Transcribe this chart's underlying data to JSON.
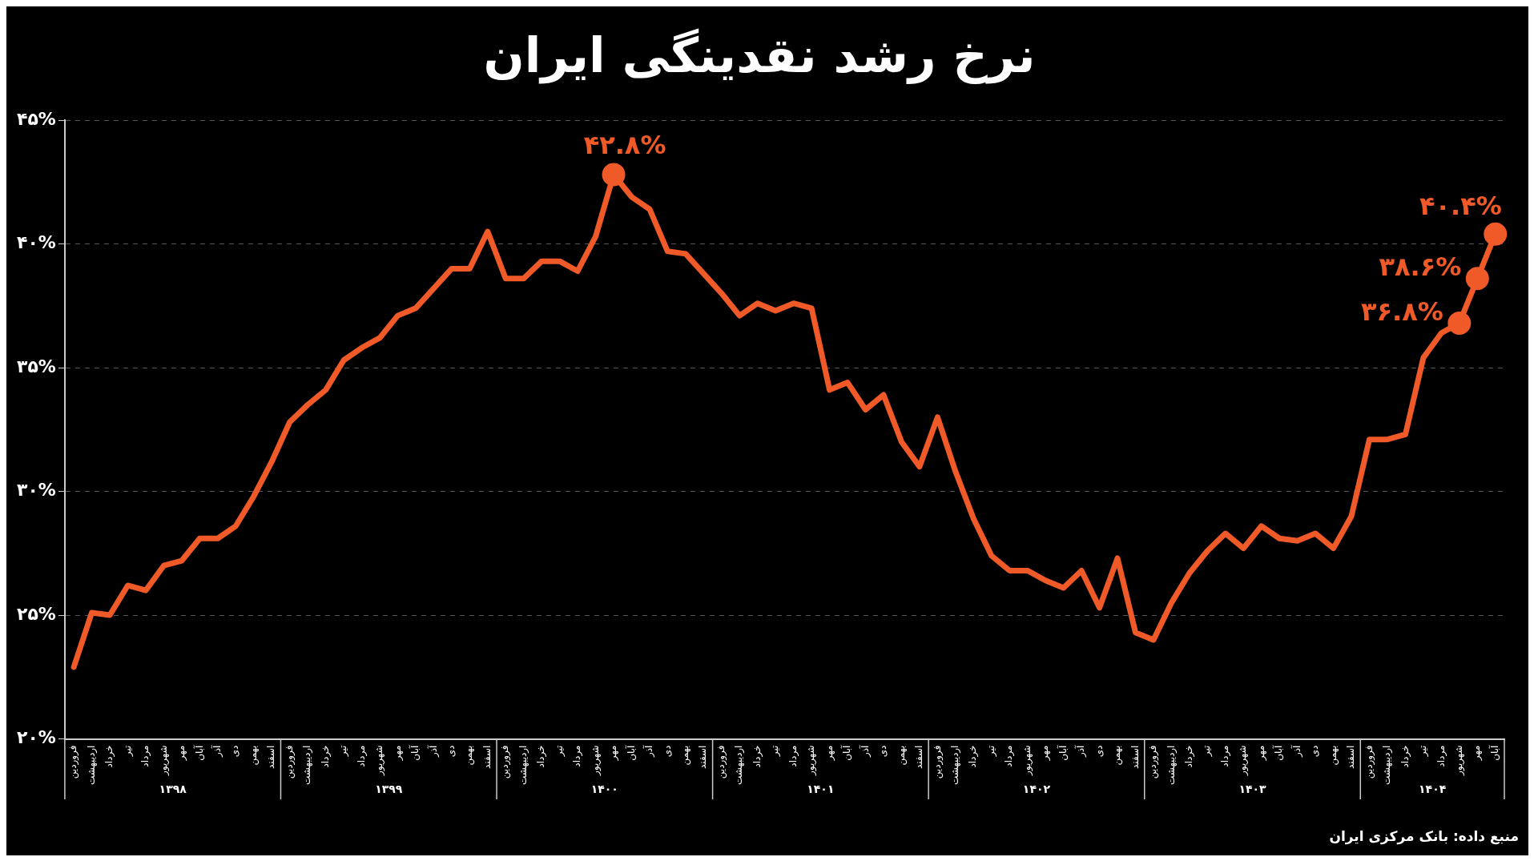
{
  "chart_data": {
    "type": "line",
    "title": "نرخ رشد نقدینگی ایران",
    "categories": [
      "فروردین",
      "اردیبهشت",
      "خرداد",
      "تیر",
      "مرداد",
      "شهریور",
      "مهر",
      "آبان",
      "آذر",
      "دی",
      "بهمن",
      "اسفند",
      "فروردین",
      "اردیبهشت",
      "خرداد",
      "تیر",
      "مرداد",
      "شهریور",
      "مهر",
      "آبان",
      "آذر",
      "دی",
      "بهمن",
      "اسفند",
      "فروردین",
      "اردیبهشت",
      "خرداد",
      "تیر",
      "مرداد",
      "شهریور",
      "مهر",
      "آبان",
      "آذر",
      "دی",
      "بهمن",
      "اسفند",
      "فروردین",
      "اردیبهشت",
      "خرداد",
      "تیر",
      "مرداد",
      "شهریور",
      "مهر",
      "آبان",
      "آذر",
      "دی",
      "بهمن",
      "اسفند",
      "فروردین",
      "اردیبهشت",
      "خرداد",
      "تیر",
      "مرداد",
      "شهریور",
      "مهر",
      "آبان",
      "آذر",
      "دی",
      "بهمن",
      "اسفند",
      "فروردین",
      "اردیبهشت",
      "خرداد",
      "تیر",
      "مرداد",
      "شهریور",
      "مهر",
      "آبان",
      "آذر",
      "دی",
      "بهمن",
      "اسفند",
      "فروردین",
      "اردیبهشت",
      "خرداد",
      "تیر",
      "مرداد",
      "شهریور",
      "مهر",
      "آبان"
    ],
    "series": [
      {
        "color": "#f05a28",
        "values": [
          22.9,
          25.1,
          25.0,
          26.2,
          26.0,
          27.0,
          27.2,
          28.1,
          28.1,
          28.6,
          29.8,
          31.2,
          32.8,
          33.5,
          34.1,
          35.3,
          35.8,
          36.2,
          37.1,
          37.4,
          38.2,
          39.0,
          39.0,
          40.5,
          38.6,
          38.6,
          39.3,
          39.3,
          38.9,
          40.3,
          42.8,
          41.9,
          41.4,
          39.7,
          39.6,
          38.8,
          38.0,
          37.1,
          37.6,
          37.3,
          37.6,
          37.4,
          34.1,
          34.4,
          33.3,
          33.9,
          32.0,
          31.0,
          33.0,
          30.8,
          28.9,
          27.4,
          26.8,
          26.8,
          26.4,
          26.1,
          26.8,
          25.3,
          27.3,
          24.3,
          24.0,
          25.5,
          26.7,
          27.6,
          28.3,
          27.7,
          28.6,
          28.1,
          28.0,
          28.3,
          27.7,
          29.0,
          32.1,
          32.1,
          32.3,
          35.4,
          36.4,
          36.8,
          38.6,
          40.4
        ],
        "value_labels": [
          null,
          null,
          null,
          null,
          null,
          null,
          null,
          null,
          null,
          null,
          null,
          null,
          null,
          null,
          null,
          null,
          null,
          null,
          null,
          null,
          null,
          null,
          null,
          null,
          null,
          null,
          null,
          null,
          null,
          null,
          "۴۲.۸%",
          null,
          null,
          null,
          null,
          null,
          null,
          null,
          null,
          null,
          null,
          null,
          null,
          null,
          null,
          null,
          null,
          null,
          null,
          null,
          null,
          null,
          null,
          null,
          null,
          null,
          null,
          null,
          null,
          null,
          null,
          null,
          null,
          null,
          null,
          null,
          null,
          null,
          null,
          null,
          null,
          null,
          null,
          null,
          null,
          null,
          null,
          "۳۶.۸%",
          "۳۸.۶%",
          "۴۰.۴%"
        ]
      }
    ],
    "ylim": [
      20,
      45
    ],
    "yticks": [
      {
        "value": 20,
        "label": "۲۰%"
      },
      {
        "value": 25,
        "label": "۲۵%"
      },
      {
        "value": 30,
        "label": "۳۰%"
      },
      {
        "value": 35,
        "label": "۳۵%"
      },
      {
        "value": 40,
        "label": "۴۰%"
      },
      {
        "value": 45,
        "label": "۴۵%"
      }
    ],
    "grid": "y",
    "legend": false,
    "line_style": "solid",
    "annotations": [
      "منبع داده: بانک مرکزی ایران",
      "۱۳۹۸",
      "۱۳۹۹",
      "۱۴۰۰",
      "۱۴۰۱",
      "۱۴۰۲",
      "۱۴۰۳",
      "۱۴۰۴"
    ]
  }
}
